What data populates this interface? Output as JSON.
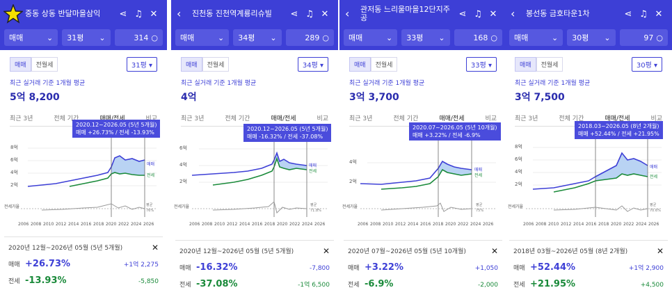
{
  "panels": [
    {
      "title": "중동 상동 반달마을삼익",
      "deal_type": "매매",
      "area": "31평",
      "count": "314",
      "toggle": [
        "매매",
        "전월세"
      ],
      "area_select": "31평",
      "basis_label": "최근 실거래 기준 1개월 평균",
      "price": "5억 8,200",
      "tabs": [
        "최근 3년",
        "전체 기간",
        "매매/전세",
        "비교"
      ],
      "tooltip_range": "2020.12~2026.05 (5년 5개월)",
      "tooltip_detail": "매매 +26.73%  /  전세 -13.93%",
      "y_ticks": [
        "8억",
        "6억",
        "4억",
        "2억"
      ],
      "series_labels": [
        "매매",
        "전세"
      ],
      "bottom_label": "전세가율",
      "avg_label": "평균",
      "avg_value": "76%",
      "x_ticks": [
        "2006",
        "2008",
        "2010",
        "2012",
        "2014",
        "2016",
        "2018",
        "2020",
        "2022",
        "2024",
        "2026"
      ],
      "summary_range": "2020년 12월~2026년 05월 (5년 5개월)",
      "sale_label": "매매",
      "sale_pct": "+26.73%",
      "sale_amt": "+1억 2,275",
      "jeonse_label": "전세",
      "jeonse_pct": "-13.93%",
      "jeonse_amt": "-5,850"
    },
    {
      "title": "진천동 진천역계룡리슈빌",
      "deal_type": "매매",
      "area": "34평",
      "count": "289",
      "toggle": [
        "매매",
        "전월세"
      ],
      "area_select": "34평",
      "basis_label": "최근 실거래 기준 1개월 평균",
      "price": "4억",
      "tabs": [
        "최근 3년",
        "전체 기간",
        "매매/전세",
        "비교"
      ],
      "tooltip_range": "2020.12~2026.05 (5년 5개월)",
      "tooltip_detail": "매매 -16.32%  /  전세 -37.08%",
      "y_ticks": [
        "6억",
        "4억",
        "2억"
      ],
      "series_labels": [
        "매매",
        "전세"
      ],
      "bottom_label": "전세가율",
      "avg_label": "평균",
      "avg_value": "71.8%",
      "x_ticks": [
        "2006",
        "2008",
        "2010",
        "2012",
        "2014",
        "2016",
        "2018",
        "2020",
        "2022",
        "2024",
        "2026"
      ],
      "summary_range": "2020년 12월~2026년 05월 (5년 5개월)",
      "sale_label": "매매",
      "sale_pct": "-16.32%",
      "sale_amt": "-7,800",
      "jeonse_label": "전세",
      "jeonse_pct": "-37.08%",
      "jeonse_amt": "-1억 6,500"
    },
    {
      "title": "관저동 느리울마을12단지주공",
      "deal_type": "매매",
      "area": "33평",
      "count": "168",
      "toggle": [
        "매매",
        "전월세"
      ],
      "area_select": "33평",
      "basis_label": "최근 실거래 기준 1개월 평균",
      "price": "3억 3,700",
      "tabs": [
        "최근 3년",
        "전체 기간",
        "매매/전세",
        "비교"
      ],
      "tooltip_range": "2020.07~2026.05 (5년 10개월)",
      "tooltip_detail": "매매 +3.22%  /  전세 -6.9%",
      "y_ticks": [
        "4억",
        "2억"
      ],
      "series_labels": [
        "매매",
        "전세"
      ],
      "bottom_label": "전세가율",
      "avg_label": "평균",
      "avg_value": "75%",
      "x_ticks": [
        "2006",
        "2008",
        "2010",
        "2012",
        "2014",
        "2016",
        "2018",
        "2020",
        "2022",
        "2024",
        "2026"
      ],
      "summary_range": "2020년 07월~2026년 05월 (5년 10개월)",
      "sale_label": "매매",
      "sale_pct": "+3.22%",
      "sale_amt": "+1,050",
      "jeonse_label": "전세",
      "jeonse_pct": "-6.9%",
      "jeonse_amt": "-2,000"
    },
    {
      "title": "봉선동 금호타운1차",
      "deal_type": "매매",
      "area": "30평",
      "count": "97",
      "toggle": [
        "매매",
        "전월세"
      ],
      "area_select": "30평",
      "basis_label": "최근 실거래 기준 1개월 평균",
      "price": "3억 7,500",
      "tabs": [
        "최근 3년",
        "전체 기간",
        "매매/전세",
        "비교"
      ],
      "tooltip_range": "2018.03~2026.05 (8년 2개월)",
      "tooltip_detail": "매매 +52.44%  /  전세 +21.95%",
      "y_ticks": [
        "8억",
        "6억",
        "4억",
        "2억"
      ],
      "series_labels": [
        "매매",
        "전세"
      ],
      "bottom_label": "전세가율",
      "avg_label": "평균",
      "avg_value": "70.6%",
      "x_ticks": [
        "2006",
        "2008",
        "2010",
        "2012",
        "2014",
        "2016",
        "2018",
        "2020",
        "2022",
        "2024",
        "2026"
      ],
      "summary_range": "2018년 03월~2026년 05월 (8년 2개월)",
      "sale_label": "매매",
      "sale_pct": "+52.44%",
      "sale_amt": "+1억 2,900",
      "jeonse_label": "전세",
      "jeonse_pct": "+21.95%",
      "jeonse_amt": "+4,500"
    }
  ],
  "colors": {
    "header": "#3d3fd6",
    "sale": "#3d3fd6",
    "jeonse": "#1a8a3a",
    "star": "#f5e000"
  },
  "icons": [
    "star-icon",
    "back-icon",
    "share-icon",
    "bell-icon",
    "close-icon",
    "chevron-down-icon",
    "search-icon"
  ]
}
